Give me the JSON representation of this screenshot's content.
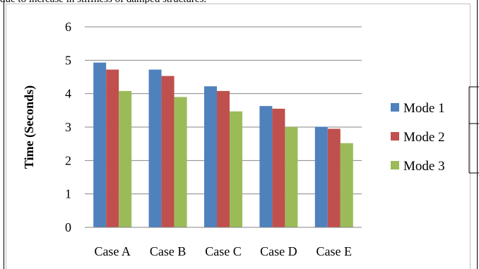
{
  "page": {
    "top_text": "due to increase in stiffness of damped structures."
  },
  "chart_data": {
    "type": "bar",
    "categories": [
      "Case A",
      "Case B",
      "Case C",
      "Case D",
      "Case E"
    ],
    "series": [
      {
        "name": "Mode 1",
        "values": [
          4.93,
          4.72,
          4.22,
          3.63,
          3.01
        ],
        "color": "#4f81bd"
      },
      {
        "name": "Mode 2",
        "values": [
          4.72,
          4.53,
          4.08,
          3.55,
          2.95
        ],
        "color": "#c0504d"
      },
      {
        "name": "Mode 3",
        "values": [
          4.08,
          3.9,
          3.47,
          3.0,
          2.52
        ],
        "color": "#9bbb59"
      }
    ],
    "title": "",
    "xlabel": "",
    "ylabel": "Time (Seconds)",
    "ylim": [
      0,
      6
    ],
    "yticks": [
      "0",
      "1",
      "2",
      "3",
      "4",
      "5",
      "6"
    ],
    "grid": true,
    "legend_position": "right"
  }
}
